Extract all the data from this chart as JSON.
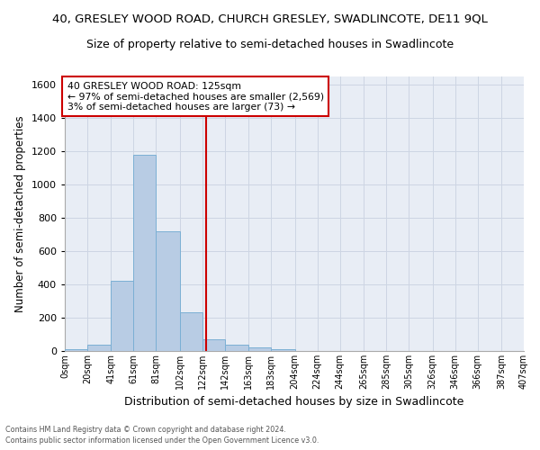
{
  "title_line1": "40, GRESLEY WOOD ROAD, CHURCH GRESLEY, SWADLINCOTE, DE11 9QL",
  "title_line2": "Size of property relative to semi-detached houses in Swadlincote",
  "xlabel": "Distribution of semi-detached houses by size in Swadlincote",
  "ylabel": "Number of semi-detached properties",
  "footer1": "Contains HM Land Registry data © Crown copyright and database right 2024.",
  "footer2": "Contains public sector information licensed under the Open Government Licence v3.0.",
  "bin_edges": [
    0,
    20,
    41,
    61,
    81,
    102,
    122,
    142,
    163,
    183,
    204,
    224,
    244,
    265,
    285,
    305,
    326,
    346,
    366,
    387,
    407
  ],
  "bin_labels": [
    "0sqm",
    "20sqm",
    "41sqm",
    "61sqm",
    "81sqm",
    "102sqm",
    "122sqm",
    "142sqm",
    "163sqm",
    "183sqm",
    "204sqm",
    "224sqm",
    "244sqm",
    "265sqm",
    "285sqm",
    "305sqm",
    "326sqm",
    "346sqm",
    "366sqm",
    "387sqm",
    "407sqm"
  ],
  "bar_heights": [
    10,
    40,
    420,
    1180,
    720,
    230,
    70,
    40,
    20,
    10,
    0,
    0,
    0,
    0,
    0,
    0,
    0,
    0,
    0,
    0
  ],
  "bar_color": "#b8cce4",
  "bar_edgecolor": "#7bafd4",
  "property_line_x": 125,
  "property_line_color": "#cc0000",
  "annotation_text": "40 GRESLEY WOOD ROAD: 125sqm\n← 97% of semi-detached houses are smaller (2,569)\n3% of semi-detached houses are larger (73) →",
  "ylim": [
    0,
    1650
  ],
  "yticks": [
    0,
    200,
    400,
    600,
    800,
    1000,
    1200,
    1400,
    1600
  ],
  "grid_color": "#cdd5e3",
  "background_color": "#e8edf5",
  "title1_fontsize": 9.5,
  "title2_fontsize": 9,
  "xlabel_fontsize": 9,
  "ylabel_fontsize": 8.5,
  "annotation_fontsize": 7.8
}
